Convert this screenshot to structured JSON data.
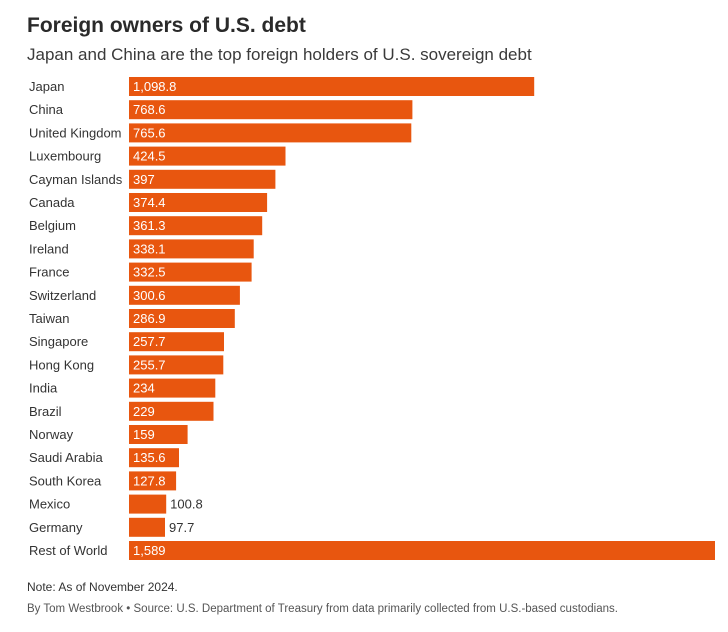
{
  "title": "Foreign owners of U.S. debt",
  "subtitle": "Japan and China are the top foreign holders of U.S. sovereign debt",
  "note": "Note: As of November 2024.",
  "source": "By Tom Westbrook • Source: U.S. Department of Treasury from data primarily collected from U.S.-based custodians.",
  "colors": {
    "bar": "#E8560F",
    "label_inside": "#ffffff",
    "label_outside": "#333333"
  },
  "chart_data": {
    "type": "bar",
    "orientation": "horizontal",
    "categories": [
      "Japan",
      "China",
      "United Kingdom",
      "Luxembourg",
      "Cayman Islands",
      "Canada",
      "Belgium",
      "Ireland",
      "France",
      "Switzerland",
      "Taiwan",
      "Singapore",
      "Hong Kong",
      "India",
      "Brazil",
      "Norway",
      "Saudi Arabia",
      "South Korea",
      "Mexico",
      "Germany",
      "Rest of World"
    ],
    "values": [
      1098.8,
      768.6,
      765.6,
      424.5,
      397,
      374.4,
      361.3,
      338.1,
      332.5,
      300.6,
      286.9,
      257.7,
      255.7,
      234,
      229,
      159,
      135.6,
      127.8,
      100.8,
      97.7,
      1589
    ],
    "value_labels": [
      "1,098.8",
      "768.6",
      "765.6",
      "424.5",
      "397",
      "374.4",
      "361.3",
      "338.1",
      "332.5",
      "300.6",
      "286.9",
      "257.7",
      "255.7",
      "234",
      "229",
      "159",
      "135.6",
      "127.8",
      "100.8",
      "97.7",
      "1,589"
    ],
    "xlim": [
      0,
      1589
    ],
    "grid": false,
    "legend": "none"
  }
}
